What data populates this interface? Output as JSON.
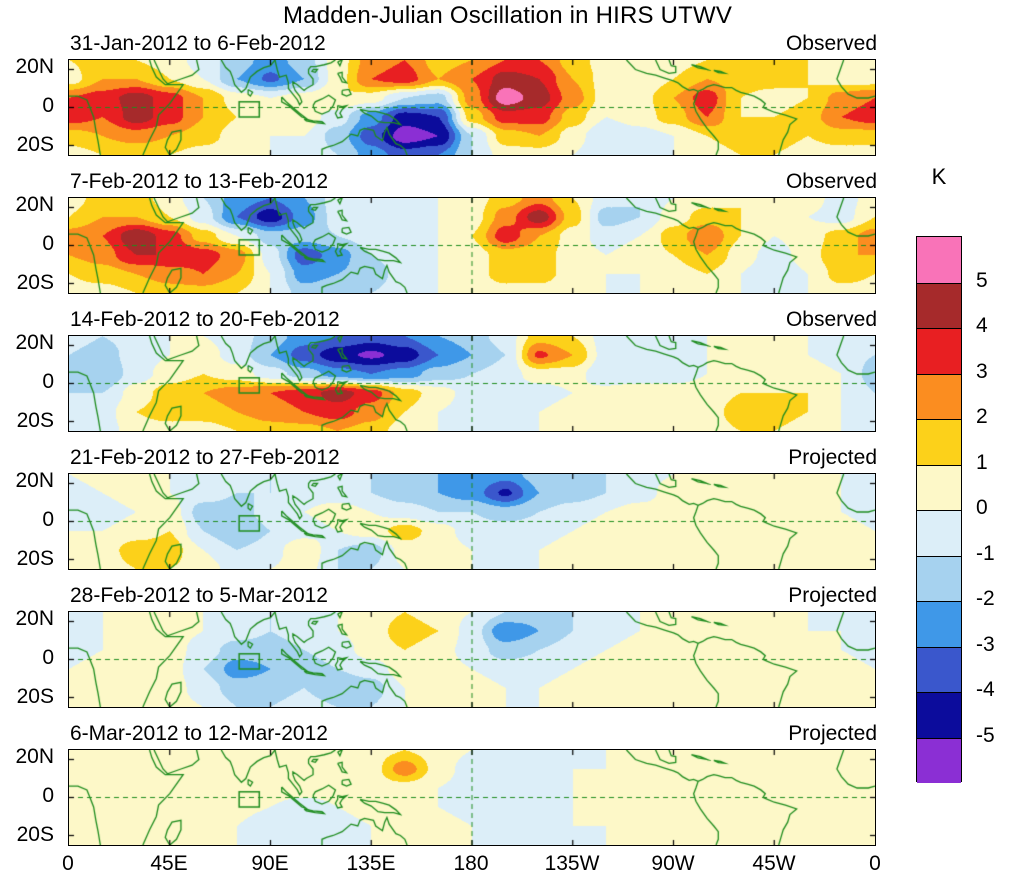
{
  "title": "Madden-Julian Oscillation in HIRS UTWV",
  "axes": {
    "y_ticks": [
      "20N",
      "0",
      "20S"
    ],
    "x_ticks": [
      "0",
      "45E",
      "90E",
      "135E",
      "180",
      "135W",
      "90W",
      "45W",
      "0"
    ]
  },
  "colorbar": {
    "unit": "K",
    "tick_labels": [
      "5",
      "4",
      "3",
      "2",
      "1",
      "0",
      "-1",
      "-2",
      "-3",
      "-4",
      "-5"
    ]
  },
  "chart_data": {
    "type": "heatmap",
    "title": "Madden-Julian Oscillation in HIRS UTWV",
    "unit": "K",
    "lon_range": [
      0,
      360
    ],
    "lat_range": [
      -25,
      25
    ],
    "lon_step": 15,
    "lat_values": [
      25,
      15,
      5,
      -5,
      -15,
      -25
    ],
    "levels": [
      -5,
      -4,
      -3,
      -2,
      -1,
      0,
      1,
      2,
      3,
      4,
      5
    ],
    "colors": [
      "#8b2fd4",
      "#0c0c9c",
      "#3a57cc",
      "#3f98e8",
      "#a6d2ef",
      "#dceef8",
      "#fdf8c8",
      "#fcd11a",
      "#fb8d20",
      "#e81f22",
      "#a62a2b",
      "#f973b8"
    ],
    "map_line_color": "#1e8c1e",
    "panels": [
      {
        "label": "31-Jan-2012 to 6-Feb-2012",
        "type": "Observed",
        "grid": [
          [
            1,
            1.5,
            1,
            0.5,
            -0.5,
            -1.5,
            -2.5,
            -1.5,
            0.5,
            2.5,
            3,
            1.5,
            2,
            3,
            3,
            1.5,
            0.5,
            0,
            0.5,
            1,
            1.5,
            1.5,
            1,
            1,
            1
          ],
          [
            0.5,
            2,
            2,
            1,
            0,
            -2,
            -3.2,
            -2,
            0.5,
            3,
            3.5,
            2,
            3,
            4.5,
            4,
            2,
            0.5,
            0,
            1,
            2,
            1.5,
            1.5,
            1,
            0.5,
            0.5
          ],
          [
            3,
            3.5,
            4.5,
            3.5,
            2,
            0.5,
            0,
            0.5,
            1,
            0.5,
            -1,
            -1.5,
            2.5,
            5.6,
            4.5,
            2.5,
            0.5,
            0.5,
            2,
            3.6,
            1,
            0.5,
            1,
            2.5,
            3
          ],
          [
            3.5,
            3,
            4.5,
            3.5,
            2,
            1,
            0.5,
            0.5,
            -0.5,
            -2.5,
            -4.5,
            -4,
            1.5,
            3.5,
            3.5,
            1.5,
            0,
            0.5,
            1.5,
            3,
            1,
            1,
            1.5,
            3,
            3.5
          ],
          [
            1.5,
            2,
            2.5,
            2,
            1.5,
            0.5,
            0,
            0,
            -1.5,
            -3.5,
            -5.6,
            -5,
            -1,
            1.5,
            2,
            0.5,
            -1,
            -0.5,
            0,
            1,
            1.5,
            1.5,
            1,
            1.5,
            1.5
          ],
          [
            0.5,
            1,
            1,
            1,
            0.5,
            0,
            0,
            0,
            -1,
            -2.5,
            -3.5,
            -3,
            -1,
            0.5,
            0.5,
            0,
            -1,
            -0.5,
            0,
            0.5,
            1,
            1,
            0.5,
            0.5,
            0.5
          ]
        ]
      },
      {
        "label": "7-Feb-2012 to 13-Feb-2012",
        "type": "Observed",
        "grid": [
          [
            0.5,
            1.5,
            1.5,
            0.5,
            -1,
            -2.5,
            -3,
            -2,
            -0.5,
            0,
            0,
            0,
            0.5,
            1.5,
            2.5,
            1,
            -0.5,
            -1,
            0,
            0.5,
            1,
            1,
            0.5,
            -0.5,
            0.5
          ],
          [
            1,
            2,
            2,
            1,
            -0.5,
            -3,
            -4.6,
            -2.5,
            -0.5,
            -0.5,
            0,
            0,
            0.5,
            2.5,
            4.6,
            1.5,
            -1.5,
            -1,
            0.5,
            1.5,
            1,
            0.5,
            0,
            -0.5,
            1
          ],
          [
            2.5,
            3,
            4.8,
            3.5,
            1.5,
            0,
            -1.5,
            -1.5,
            -1,
            -0.5,
            -0.5,
            0,
            1,
            3.6,
            2,
            0.5,
            -0.5,
            0,
            1.5,
            3,
            1,
            0,
            0.5,
            1.5,
            2.5
          ],
          [
            2,
            2.5,
            4,
            4,
            3.5,
            2.5,
            -0.5,
            -3.6,
            -2.5,
            -1,
            -0.5,
            0,
            0.5,
            1.5,
            1.5,
            0.5,
            0,
            0.5,
            1,
            2,
            0.5,
            -0.5,
            0.5,
            2,
            2
          ],
          [
            1,
            1.5,
            2,
            2.5,
            3,
            2,
            0,
            -2.5,
            -2,
            -1.5,
            -0.5,
            0,
            0.5,
            1.5,
            1.5,
            0.5,
            0,
            0,
            0.5,
            1,
            0,
            -1,
            0,
            1.5,
            1
          ],
          [
            0.5,
            0.5,
            1,
            1.5,
            1.5,
            1,
            0,
            -1.5,
            -1,
            -1,
            -0.5,
            0,
            0,
            0.5,
            0.5,
            0,
            0,
            0,
            0,
            0.5,
            0,
            -0.5,
            0,
            0.5,
            0.5
          ]
        ]
      },
      {
        "label": "14-Feb-2012 to 20-Feb-2012",
        "type": "Observed",
        "grid": [
          [
            -0.5,
            -1,
            -0.5,
            0,
            0,
            -0.5,
            -1.5,
            -2.5,
            -3,
            -3.5,
            -3,
            -2,
            -1.5,
            -0.5,
            1.5,
            1,
            -0.5,
            -0.5,
            -0.5,
            0,
            0.5,
            0.5,
            0,
            -0.5,
            -0.5
          ],
          [
            -1,
            -1.5,
            -0.5,
            0,
            0.5,
            -0.5,
            -2,
            -3.5,
            -4.6,
            -5.2,
            -4.6,
            -3,
            -2,
            -1,
            3.2,
            2,
            -0.5,
            -1,
            -0.5,
            0,
            0.5,
            0.5,
            0,
            -0.5,
            -1
          ],
          [
            -1.5,
            -2,
            -0.5,
            0.5,
            1,
            0.5,
            -0.5,
            -1.5,
            -2.5,
            -3,
            -2.5,
            -1.5,
            -1,
            -0.5,
            0.5,
            0.5,
            -1,
            -1,
            -0.5,
            0,
            0.5,
            0.5,
            0.5,
            0,
            -1.5
          ],
          [
            -1,
            -1,
            0.5,
            1.5,
            2,
            2.5,
            3,
            3.5,
            4.5,
            3.5,
            1.5,
            0.5,
            -0.5,
            -0.5,
            -0.5,
            0,
            0.5,
            1,
            0.5,
            0.5,
            1,
            1,
            1,
            0,
            -1
          ],
          [
            -0.5,
            -0.5,
            1,
            1.5,
            1.5,
            2,
            2.5,
            3,
            3.5,
            2.5,
            1,
            0,
            -0.5,
            -0.5,
            0,
            0.5,
            1,
            1,
            0.5,
            0.5,
            1.5,
            1.5,
            1,
            0,
            -0.5
          ],
          [
            -0.5,
            -0.5,
            0.5,
            0.5,
            0.5,
            1,
            1.5,
            1.5,
            2,
            1.5,
            0.5,
            0,
            -0.5,
            -0.5,
            0,
            0.5,
            0.5,
            0.5,
            0.5,
            0.5,
            1,
            1,
            0.5,
            0,
            -0.5
          ]
        ]
      },
      {
        "label": "21-Feb-2012 to 27-Feb-2012",
        "type": "Projected",
        "grid": [
          [
            0,
            0.5,
            0.5,
            0,
            -0.5,
            -0.5,
            -1,
            -1,
            -0.5,
            -1,
            -1.5,
            -2,
            -2,
            -2.5,
            -1.5,
            -1.5,
            -1,
            -0.5,
            0,
            0.5,
            0.5,
            0.5,
            0.5,
            0,
            0
          ],
          [
            -0.5,
            0,
            0.5,
            0,
            -0.5,
            -1,
            -1,
            -0.5,
            -0.5,
            -1,
            -1.5,
            -2,
            -2.5,
            -4.2,
            -2,
            -1.5,
            -1,
            -0.5,
            0.5,
            0.5,
            0.5,
            0.5,
            0.5,
            0,
            -0.5
          ],
          [
            -0.5,
            -0.5,
            0,
            0.5,
            -1.5,
            -1.5,
            -0.5,
            0,
            0.5,
            0,
            -0.5,
            -1,
            -1,
            -1.5,
            -1,
            -0.5,
            0,
            0.5,
            0.5,
            0.5,
            0.5,
            0.5,
            0.5,
            0,
            -0.5
          ],
          [
            0,
            0,
            0.5,
            1,
            -1,
            -2,
            -1,
            -0.5,
            0,
            0.5,
            1.5,
            0.5,
            -0.5,
            -0.5,
            -0.5,
            0,
            0.5,
            0.5,
            0.5,
            0.5,
            0.5,
            1,
            0.5,
            0.5,
            0
          ],
          [
            0.5,
            0.5,
            1.5,
            1.5,
            0,
            -1,
            -0.5,
            1,
            -1,
            -1.5,
            0.5,
            0.5,
            0,
            0,
            0,
            0.5,
            0.5,
            1,
            0.5,
            0.5,
            1,
            1,
            1,
            0.5,
            0.5
          ],
          [
            0.5,
            0.5,
            1,
            1,
            0.5,
            -0.5,
            0,
            0.5,
            -1,
            -1,
            0,
            0.5,
            0,
            0,
            0,
            0.5,
            0.5,
            0.5,
            0.5,
            0.5,
            0.5,
            1,
            0.5,
            0.5,
            0.5
          ]
        ]
      },
      {
        "label": "28-Feb-2012 to 5-Mar-2012",
        "type": "Projected",
        "grid": [
          [
            0,
            0,
            0.5,
            0.5,
            0,
            -0.5,
            -1,
            -0.5,
            0,
            0.5,
            1,
            0.5,
            0,
            -1,
            -1.5,
            -1,
            -0.5,
            0,
            0,
            0.5,
            0.5,
            0.5,
            0,
            0,
            0
          ],
          [
            -0.5,
            0,
            0.5,
            0.5,
            0,
            -0.5,
            -1,
            -0.5,
            0,
            0.5,
            1.5,
            1,
            -0.5,
            -2.8,
            -2,
            -1,
            -0.5,
            0,
            0.5,
            0.5,
            0.5,
            0.5,
            0,
            0,
            -0.5
          ],
          [
            -0.5,
            0,
            1,
            0.5,
            -0.5,
            -1.5,
            -1.5,
            -1,
            -0.5,
            0.5,
            1,
            0.5,
            -0.5,
            -1.5,
            -1,
            -0.5,
            0,
            0.5,
            0.5,
            0.5,
            0.5,
            0.5,
            0.5,
            0,
            -0.5
          ],
          [
            0,
            0.5,
            1,
            0.5,
            -1,
            -2.5,
            -2,
            -1.5,
            -1,
            -0.5,
            0.5,
            0.5,
            0,
            -0.5,
            -0.5,
            0,
            0.5,
            0.5,
            0.5,
            0.5,
            0.5,
            0.5,
            0.5,
            0.5,
            0
          ],
          [
            0.5,
            0.5,
            1,
            0.5,
            -0.5,
            -1.5,
            -1.5,
            -1,
            -2,
            -1.5,
            0,
            0.5,
            0.5,
            0,
            0,
            0.5,
            0.5,
            0.5,
            0.5,
            0.5,
            0.5,
            1,
            0.5,
            0.5,
            0.5
          ],
          [
            0.5,
            0.5,
            0.5,
            0.5,
            0,
            -1,
            -1,
            -0.5,
            -1,
            -1,
            0,
            0.5,
            0.5,
            0,
            0,
            0.5,
            0.5,
            0.5,
            0.5,
            0.5,
            0.5,
            0.5,
            0.5,
            0.5,
            0.5
          ]
        ]
      },
      {
        "label": "6-Mar-2012 to 12-Mar-2012",
        "type": "Projected",
        "grid": [
          [
            0.5,
            0.5,
            0.5,
            0.5,
            0.5,
            0.5,
            0,
            0,
            0.5,
            0.5,
            1,
            0.5,
            0,
            -0.5,
            -0.5,
            0,
            0,
            0.5,
            0.5,
            0.5,
            0.5,
            0.5,
            0.5,
            0.5,
            0.5
          ],
          [
            0.5,
            0.5,
            1,
            0.5,
            0.5,
            0.5,
            0.5,
            0,
            0.5,
            0.5,
            2.6,
            0.5,
            -0.5,
            -0.5,
            -0.5,
            0,
            0,
            0.5,
            0.5,
            0.5,
            0.5,
            0.5,
            0.5,
            0.5,
            0.5
          ],
          [
            0.5,
            1,
            1,
            0.5,
            0.5,
            0.5,
            0.5,
            0.5,
            0.5,
            0.5,
            0.5,
            0,
            -0.5,
            -1,
            -0.5,
            0,
            0.5,
            0.5,
            0.5,
            0.5,
            0.5,
            0.5,
            0.5,
            0.5,
            0.5
          ],
          [
            0.5,
            1,
            0.5,
            0.5,
            0.5,
            0.5,
            0,
            -0.5,
            0,
            0.5,
            0.5,
            0,
            -0.5,
            -0.5,
            0,
            0,
            0.5,
            0.5,
            0.5,
            0.5,
            0.5,
            0.5,
            0.5,
            0.5,
            0.5
          ],
          [
            0.5,
            0.5,
            0.5,
            0.5,
            0.5,
            0,
            -1,
            -1,
            -0.5,
            0,
            0.5,
            0.5,
            0,
            0,
            0,
            0,
            0,
            0.5,
            0.5,
            0.5,
            0.5,
            0.5,
            0.5,
            0.5,
            0.5
          ],
          [
            0.5,
            0.5,
            0.5,
            0.5,
            0.5,
            0,
            -0.5,
            -0.5,
            -0.5,
            0,
            0.5,
            0.5,
            0,
            0,
            0,
            0,
            0,
            0.5,
            0.5,
            0.5,
            0.5,
            0.5,
            0.5,
            0.5,
            0.5
          ]
        ]
      }
    ]
  }
}
